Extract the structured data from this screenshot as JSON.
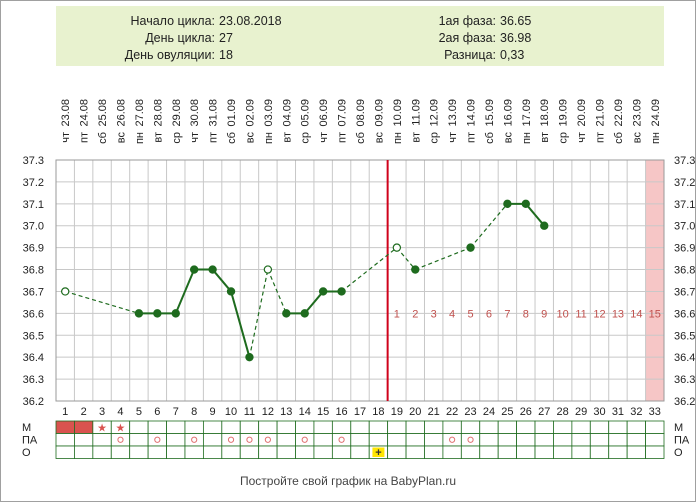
{
  "info": {
    "cycle_start_label": "Начало цикла:",
    "cycle_start_value": "23.08.2018",
    "cycle_day_label": "День цикла:",
    "cycle_day_value": "27",
    "ovulation_day_label": "День овуляции:",
    "ovulation_day_value": "18",
    "phase1_label": "1ая фаза:",
    "phase1_value": "36.65",
    "phase2_label": "2ая фаза:",
    "phase2_value": "36.98",
    "difference_label": "Разница:",
    "difference_value": "0,33"
  },
  "footer": "Постройте свой график на BabyPlan.ru",
  "colors": {
    "line": "#1e6b1e",
    "grid": "#c8c8c8",
    "ovulation_line": "#d0021b",
    "period_cell": "#d9534f",
    "menstruation_zone": "#f6c6c6",
    "luteal_numbers": "#c0504d",
    "marker_circle": "#e07070",
    "o_marker_fill": "#ffe600"
  },
  "chart_data": {
    "type": "line",
    "title": "",
    "xlabel": "",
    "ylabel": "",
    "ylim": [
      36.2,
      37.3
    ],
    "yticks": [
      "37.3",
      "37.2",
      "37.1",
      "37.0",
      "36.9",
      "36.8",
      "36.7",
      "36.6",
      "36.5",
      "36.4",
      "36.3",
      "36.2"
    ],
    "x": [
      1,
      2,
      3,
      4,
      5,
      6,
      7,
      8,
      9,
      10,
      11,
      12,
      13,
      14,
      15,
      16,
      17,
      18,
      19,
      20,
      21,
      22,
      23,
      24,
      25,
      26,
      27,
      28,
      29,
      30,
      31,
      32,
      33
    ],
    "weekdays": [
      "чт",
      "пт",
      "сб",
      "вс",
      "пн",
      "вт",
      "ср",
      "чт",
      "пт",
      "сб",
      "вс",
      "пн",
      "вт",
      "ср",
      "чт",
      "пт",
      "сб",
      "вс",
      "пн",
      "вт",
      "ср",
      "чт",
      "пт",
      "сб",
      "вс",
      "пн",
      "вт",
      "ср",
      "чт",
      "пт",
      "сб",
      "вс",
      "пн"
    ],
    "dates": [
      "23.08",
      "24.08",
      "25.08",
      "26.08",
      "27.08",
      "28.08",
      "29.08",
      "30.08",
      "31.08",
      "01.09",
      "02.09",
      "03.09",
      "04.09",
      "05.09",
      "06.09",
      "07.09",
      "08.09",
      "09.09",
      "10.09",
      "11.09",
      "12.09",
      "13.09",
      "14.09",
      "15.09",
      "16.09",
      "17.09",
      "18.09",
      "19.09",
      "20.09",
      "21.09",
      "22.09",
      "23.09",
      "24.09"
    ],
    "temperature": [
      {
        "day": 1,
        "value": 36.7,
        "hollow": true
      },
      {
        "day": 5,
        "value": 36.6
      },
      {
        "day": 6,
        "value": 36.6
      },
      {
        "day": 7,
        "value": 36.6
      },
      {
        "day": 8,
        "value": 36.8
      },
      {
        "day": 9,
        "value": 36.8
      },
      {
        "day": 10,
        "value": 36.7
      },
      {
        "day": 11,
        "value": 36.4
      },
      {
        "day": 12,
        "value": 36.8,
        "hollow": true
      },
      {
        "day": 13,
        "value": 36.6
      },
      {
        "day": 14,
        "value": 36.6
      },
      {
        "day": 15,
        "value": 36.7
      },
      {
        "day": 16,
        "value": 36.7
      },
      {
        "day": 19,
        "value": 36.9,
        "hollow": true
      },
      {
        "day": 20,
        "value": 36.8
      },
      {
        "day": 23,
        "value": 36.9
      },
      {
        "day": 25,
        "value": 37.1
      },
      {
        "day": 26,
        "value": 37.1
      },
      {
        "day": 27,
        "value": 37.0
      }
    ],
    "ovulation_day": 18,
    "luteal_day_numbers": [
      {
        "day": 19,
        "n": "1"
      },
      {
        "day": 20,
        "n": "2"
      },
      {
        "day": 21,
        "n": "3"
      },
      {
        "day": 22,
        "n": "4"
      },
      {
        "day": 23,
        "n": "5"
      },
      {
        "day": 24,
        "n": "6"
      },
      {
        "day": 25,
        "n": "7"
      },
      {
        "day": 26,
        "n": "8"
      },
      {
        "day": 27,
        "n": "9"
      },
      {
        "day": 28,
        "n": "10"
      },
      {
        "day": 29,
        "n": "11"
      },
      {
        "day": 30,
        "n": "12"
      },
      {
        "day": 31,
        "n": "13"
      },
      {
        "day": 32,
        "n": "14"
      },
      {
        "day": 33,
        "n": "15"
      }
    ],
    "expected_period_day": 33,
    "rows": [
      {
        "label": "М",
        "filled_days": [
          1,
          2
        ],
        "star_days": [
          3,
          4
        ],
        "circle_days": [],
        "plus_days": []
      },
      {
        "label": "ПА",
        "filled_days": [],
        "star_days": [],
        "circle_days": [
          4,
          6,
          8,
          10,
          11,
          12,
          14,
          16,
          22,
          23
        ],
        "plus_days": []
      },
      {
        "label": "О",
        "filled_days": [],
        "star_days": [],
        "circle_days": [],
        "plus_days": [
          18
        ]
      }
    ],
    "star_glyph": "★",
    "plus_glyph": "+"
  }
}
